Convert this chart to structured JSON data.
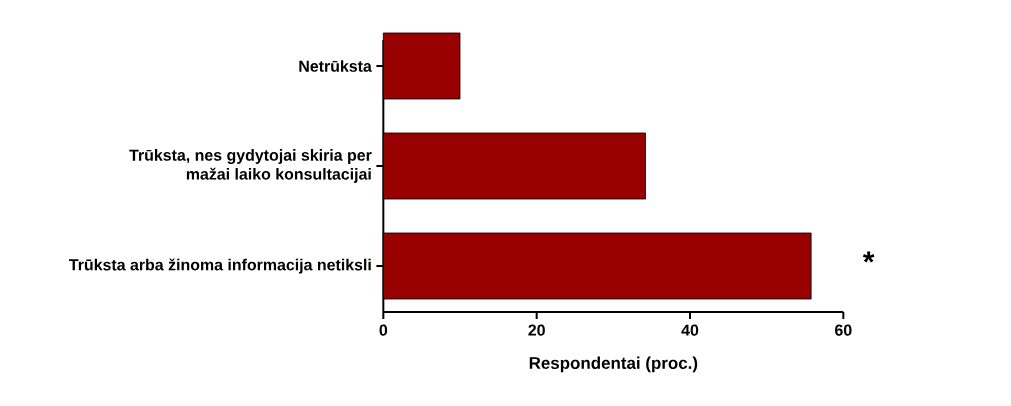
{
  "chart_data": {
    "type": "bar",
    "orientation": "horizontal",
    "xlabel": "Respondentai (proc.)",
    "categories": [
      "Netrūksta",
      "Trūksta, nes gydytojai skiria per mažai laiko konsultacijai",
      "Trūksta arba žinoma informacija netiksli"
    ],
    "values": [
      10.0,
      34.2,
      55.8
    ],
    "color": "#990000",
    "xlim": [
      0,
      60
    ],
    "xticks": [
      0,
      20,
      40,
      60
    ],
    "grid": false,
    "annotations": [
      "*"
    ]
  }
}
